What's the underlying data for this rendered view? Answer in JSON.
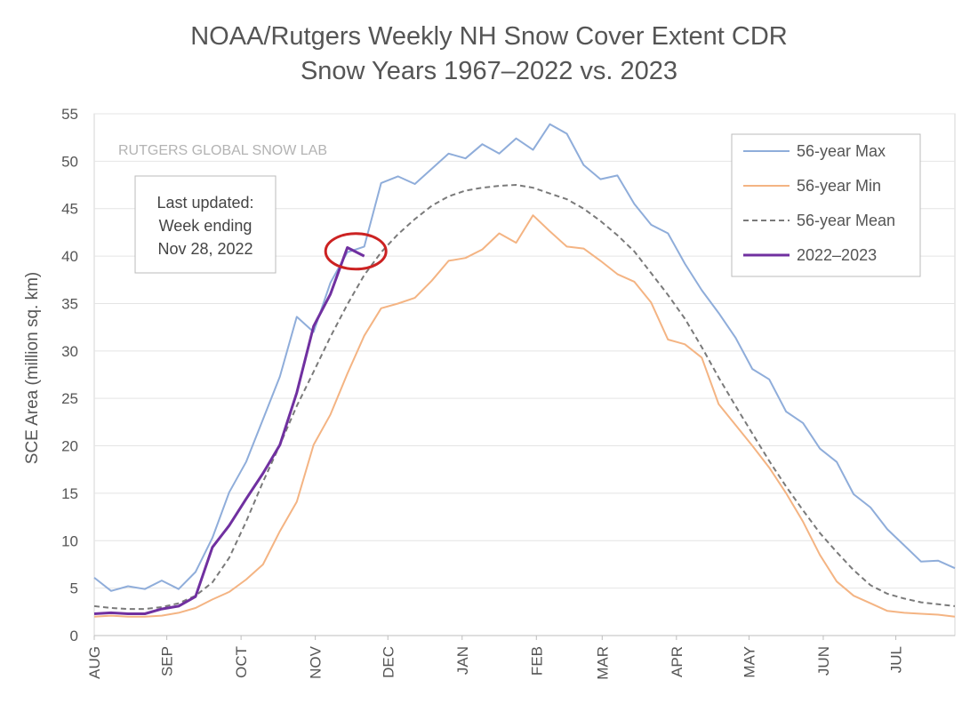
{
  "chart_data": {
    "type": "line",
    "title": "NOAA/Rutgers Weekly NH Snow Cover Extent CDR",
    "subtitle": "Snow Years 1967–2022 vs. 2023",
    "ylabel": "SCE Area (million sq. km)",
    "ylim": [
      0,
      55
    ],
    "yticks": [
      0,
      5,
      10,
      15,
      20,
      25,
      30,
      35,
      40,
      45,
      50,
      55
    ],
    "xlim": [
      0,
      51
    ],
    "month_labels": [
      "AUG",
      "SEP",
      "OCT",
      "NOV",
      "DEC",
      "JAN",
      "FEB",
      "MAR",
      "APR",
      "MAY",
      "JUN",
      "JUL"
    ],
    "month_ticks": [
      0,
      4.3,
      8.7,
      13.1,
      17.4,
      21.8,
      26.2,
      30.1,
      34.5,
      38.8,
      43.2,
      47.5
    ],
    "grid": "horizontal",
    "watermark": "RUTGERS GLOBAL SNOW LAB",
    "annotation": {
      "lines": [
        "Last updated:",
        "Week ending",
        "Nov 28, 2022"
      ]
    },
    "highlight": {
      "label": "latest week",
      "x": 15.5,
      "y": 40.5,
      "color": "#cc2222"
    },
    "legend_position": "top-right",
    "series": [
      {
        "name": "56-year Max",
        "color": "#8fadda",
        "style": "solid",
        "values": [
          6.1,
          4.7,
          5.2,
          4.9,
          5.8,
          4.9,
          6.7,
          10.3,
          15.1,
          18.3,
          22.8,
          27.3,
          33.6,
          32.0,
          37.2,
          40.4,
          41.0,
          47.7,
          48.4,
          47.6,
          49.2,
          50.8,
          50.3,
          51.8,
          50.8,
          52.4,
          51.2,
          53.9,
          52.9,
          49.6,
          48.1,
          48.5,
          45.5,
          43.3,
          42.4,
          39.2,
          36.4,
          34.0,
          31.4,
          28.1,
          27.0,
          23.6,
          22.4,
          19.7,
          18.3,
          14.9,
          13.5,
          11.2,
          9.5,
          7.8,
          7.9,
          7.1
        ]
      },
      {
        "name": "56-year Min",
        "color": "#f4b483",
        "style": "solid",
        "values": [
          2.0,
          2.1,
          2.0,
          2.0,
          2.1,
          2.4,
          2.9,
          3.8,
          4.6,
          5.9,
          7.5,
          11.0,
          14.1,
          20.1,
          23.3,
          27.6,
          31.6,
          34.5,
          35.0,
          35.6,
          37.4,
          39.5,
          39.8,
          40.7,
          42.4,
          41.4,
          44.3,
          42.6,
          41.0,
          40.8,
          39.5,
          38.1,
          37.3,
          35.1,
          31.2,
          30.7,
          29.3,
          24.4,
          22.2,
          20.0,
          17.7,
          15.0,
          12.0,
          8.5,
          5.7,
          4.2,
          3.4,
          2.6,
          2.4,
          2.3,
          2.2,
          2.0
        ]
      },
      {
        "name": "56-year Mean",
        "color": "#7a7a7a",
        "style": "dashed",
        "values": [
          3.1,
          2.9,
          2.8,
          2.8,
          3.0,
          3.4,
          4.2,
          5.6,
          8.2,
          12.0,
          16.2,
          20.1,
          24.2,
          27.8,
          31.5,
          34.9,
          38.0,
          40.4,
          42.3,
          43.9,
          45.3,
          46.3,
          46.9,
          47.2,
          47.4,
          47.5,
          47.2,
          46.6,
          46.0,
          45.0,
          43.7,
          42.2,
          40.5,
          38.2,
          35.9,
          33.4,
          30.4,
          27.2,
          24.2,
          21.3,
          18.4,
          15.7,
          13.2,
          10.8,
          8.8,
          6.9,
          5.3,
          4.4,
          3.9,
          3.5,
          3.3,
          3.1
        ]
      },
      {
        "name": "2022–2023",
        "color": "#7030a0",
        "style": "solid",
        "values": [
          2.3,
          2.4,
          2.3,
          2.3,
          2.8,
          3.1,
          4.1,
          9.3,
          11.6,
          14.4,
          17.1,
          20.1,
          25.6,
          32.6,
          36.0,
          40.9,
          40.0
        ]
      }
    ]
  }
}
